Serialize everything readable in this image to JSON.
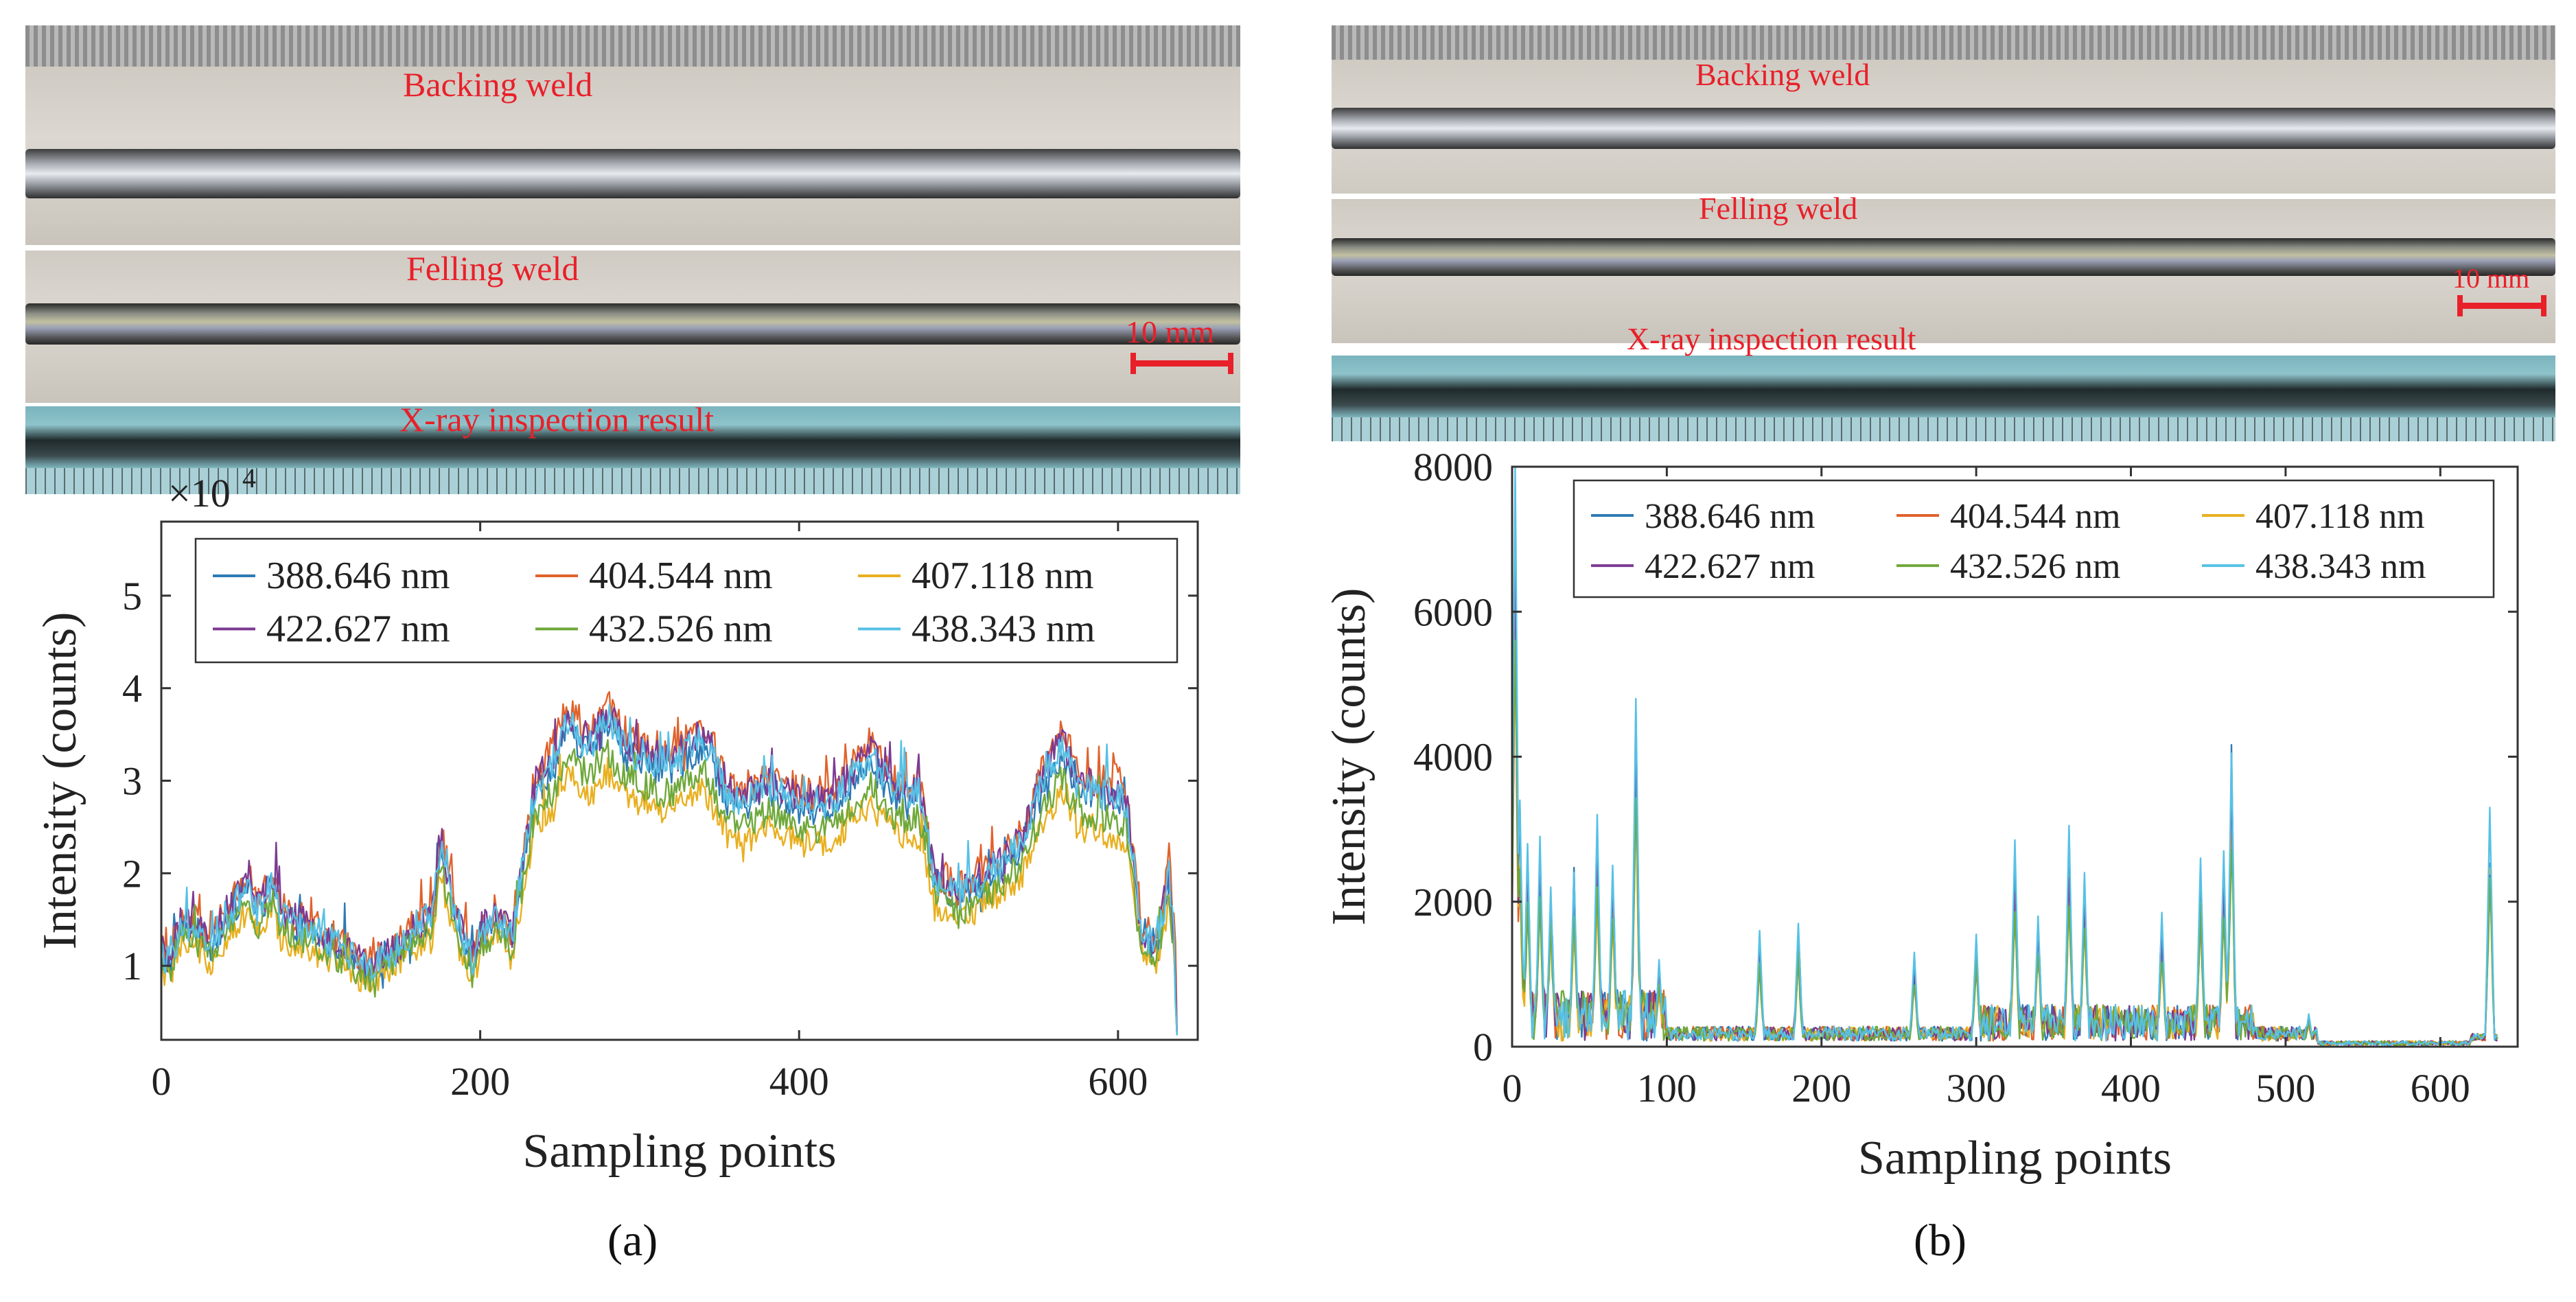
{
  "panel_a": {
    "photo": {
      "backing_label": "Backing weld",
      "felling_label": "Felling weld",
      "scale_label": "10 mm",
      "xray_label": "X-ray inspection result"
    },
    "caption": "(a)"
  },
  "panel_b": {
    "photo": {
      "backing_label": "Backing weld",
      "felling_label": "Felling weld",
      "scale_label": "10 mm",
      "xray_label": "X-ray inspection result"
    },
    "caption": "(b)"
  },
  "colors": {
    "388.646 nm": "#2e7bb4",
    "404.544 nm": "#e0622c",
    "407.118 nm": "#e8b020",
    "422.627 nm": "#7c3a92",
    "432.526 nm": "#6fa83a",
    "438.343 nm": "#57c1e6",
    "label_red": "#e8202a"
  },
  "chart_data": [
    {
      "type": "line",
      "panel": "a",
      "title": "",
      "xlabel": "Sampling points",
      "ylabel": "Intensity (counts)",
      "y_multiplier": "×10",
      "y_exponent": "4",
      "xlim": [
        0,
        650
      ],
      "ylim": [
        0.2,
        5.8
      ],
      "xticks": [
        0,
        200,
        400,
        600
      ],
      "yticks": [
        1,
        2,
        3,
        4,
        5
      ],
      "legend_position": "top",
      "series_names": [
        "388.646 nm",
        "404.544 nm",
        "407.118 nm",
        "422.627 nm",
        "432.526 nm",
        "438.343 nm"
      ],
      "series_scale": [
        1.0,
        1.07,
        0.86,
        1.04,
        0.92,
        1.02
      ],
      "profile_x": [
        0,
        5,
        12,
        20,
        30,
        45,
        55,
        60,
        70,
        75,
        90,
        110,
        130,
        145,
        160,
        170,
        175,
        185,
        195,
        200,
        210,
        220,
        228,
        235,
        245,
        255,
        262,
        270,
        280,
        290,
        300,
        320,
        340,
        355,
        365,
        380,
        400,
        420,
        445,
        460,
        475,
        485,
        500,
        515,
        525,
        540,
        555,
        565,
        575,
        590,
        600,
        605,
        615,
        625,
        632,
        635,
        637
      ],
      "profile_y": [
        1.1,
        1.0,
        1.4,
        1.4,
        1.2,
        1.6,
        1.9,
        1.5,
        1.9,
        1.5,
        1.4,
        1.2,
        0.95,
        1.1,
        1.4,
        1.5,
        2.3,
        1.5,
        1.0,
        1.3,
        1.5,
        1.3,
        2.2,
        2.9,
        3.1,
        3.6,
        3.4,
        3.3,
        3.6,
        3.3,
        3.2,
        3.1,
        3.4,
        2.8,
        2.7,
        2.9,
        2.7,
        2.7,
        3.2,
        2.8,
        2.8,
        1.9,
        1.7,
        1.9,
        2.0,
        2.3,
        3.0,
        3.3,
        2.9,
        2.8,
        2.8,
        2.7,
        1.3,
        1.2,
        2.0,
        1.3,
        0.25
      ],
      "profile_note": "values for 388.646 nm in units of ×10^4 counts; other series follow series_scale"
    },
    {
      "type": "line",
      "panel": "b",
      "title": "",
      "xlabel": "Sampling points",
      "ylabel": "Intensity (counts)",
      "xlim": [
        0,
        650
      ],
      "ylim": [
        0,
        8000
      ],
      "xticks": [
        0,
        100,
        200,
        300,
        400,
        500,
        600
      ],
      "yticks": [
        0,
        2000,
        4000,
        6000,
        8000
      ],
      "legend_position": "top",
      "series_names": [
        "388.646 nm",
        "404.544 nm",
        "407.118 nm",
        "422.627 nm",
        "432.526 nm",
        "438.343 nm"
      ],
      "series_scale": [
        0.9,
        0.75,
        0.7,
        0.82,
        0.72,
        1.0
      ],
      "peaks_x": [
        2,
        5,
        10,
        18,
        25,
        40,
        55,
        65,
        80,
        95,
        160,
        185,
        260,
        300,
        325,
        340,
        360,
        370,
        420,
        445,
        460,
        465,
        515,
        632
      ],
      "peaks_y": [
        8000,
        3400,
        2800,
        2900,
        2200,
        2400,
        3200,
        2500,
        4800,
        1200,
        1600,
        1700,
        1300,
        1550,
        2850,
        1800,
        3050,
        2400,
        1850,
        2600,
        2700,
        4050,
        450,
        3300
      ],
      "baseline_note": "noise floor about 50–600 counts between peaks"
    }
  ]
}
